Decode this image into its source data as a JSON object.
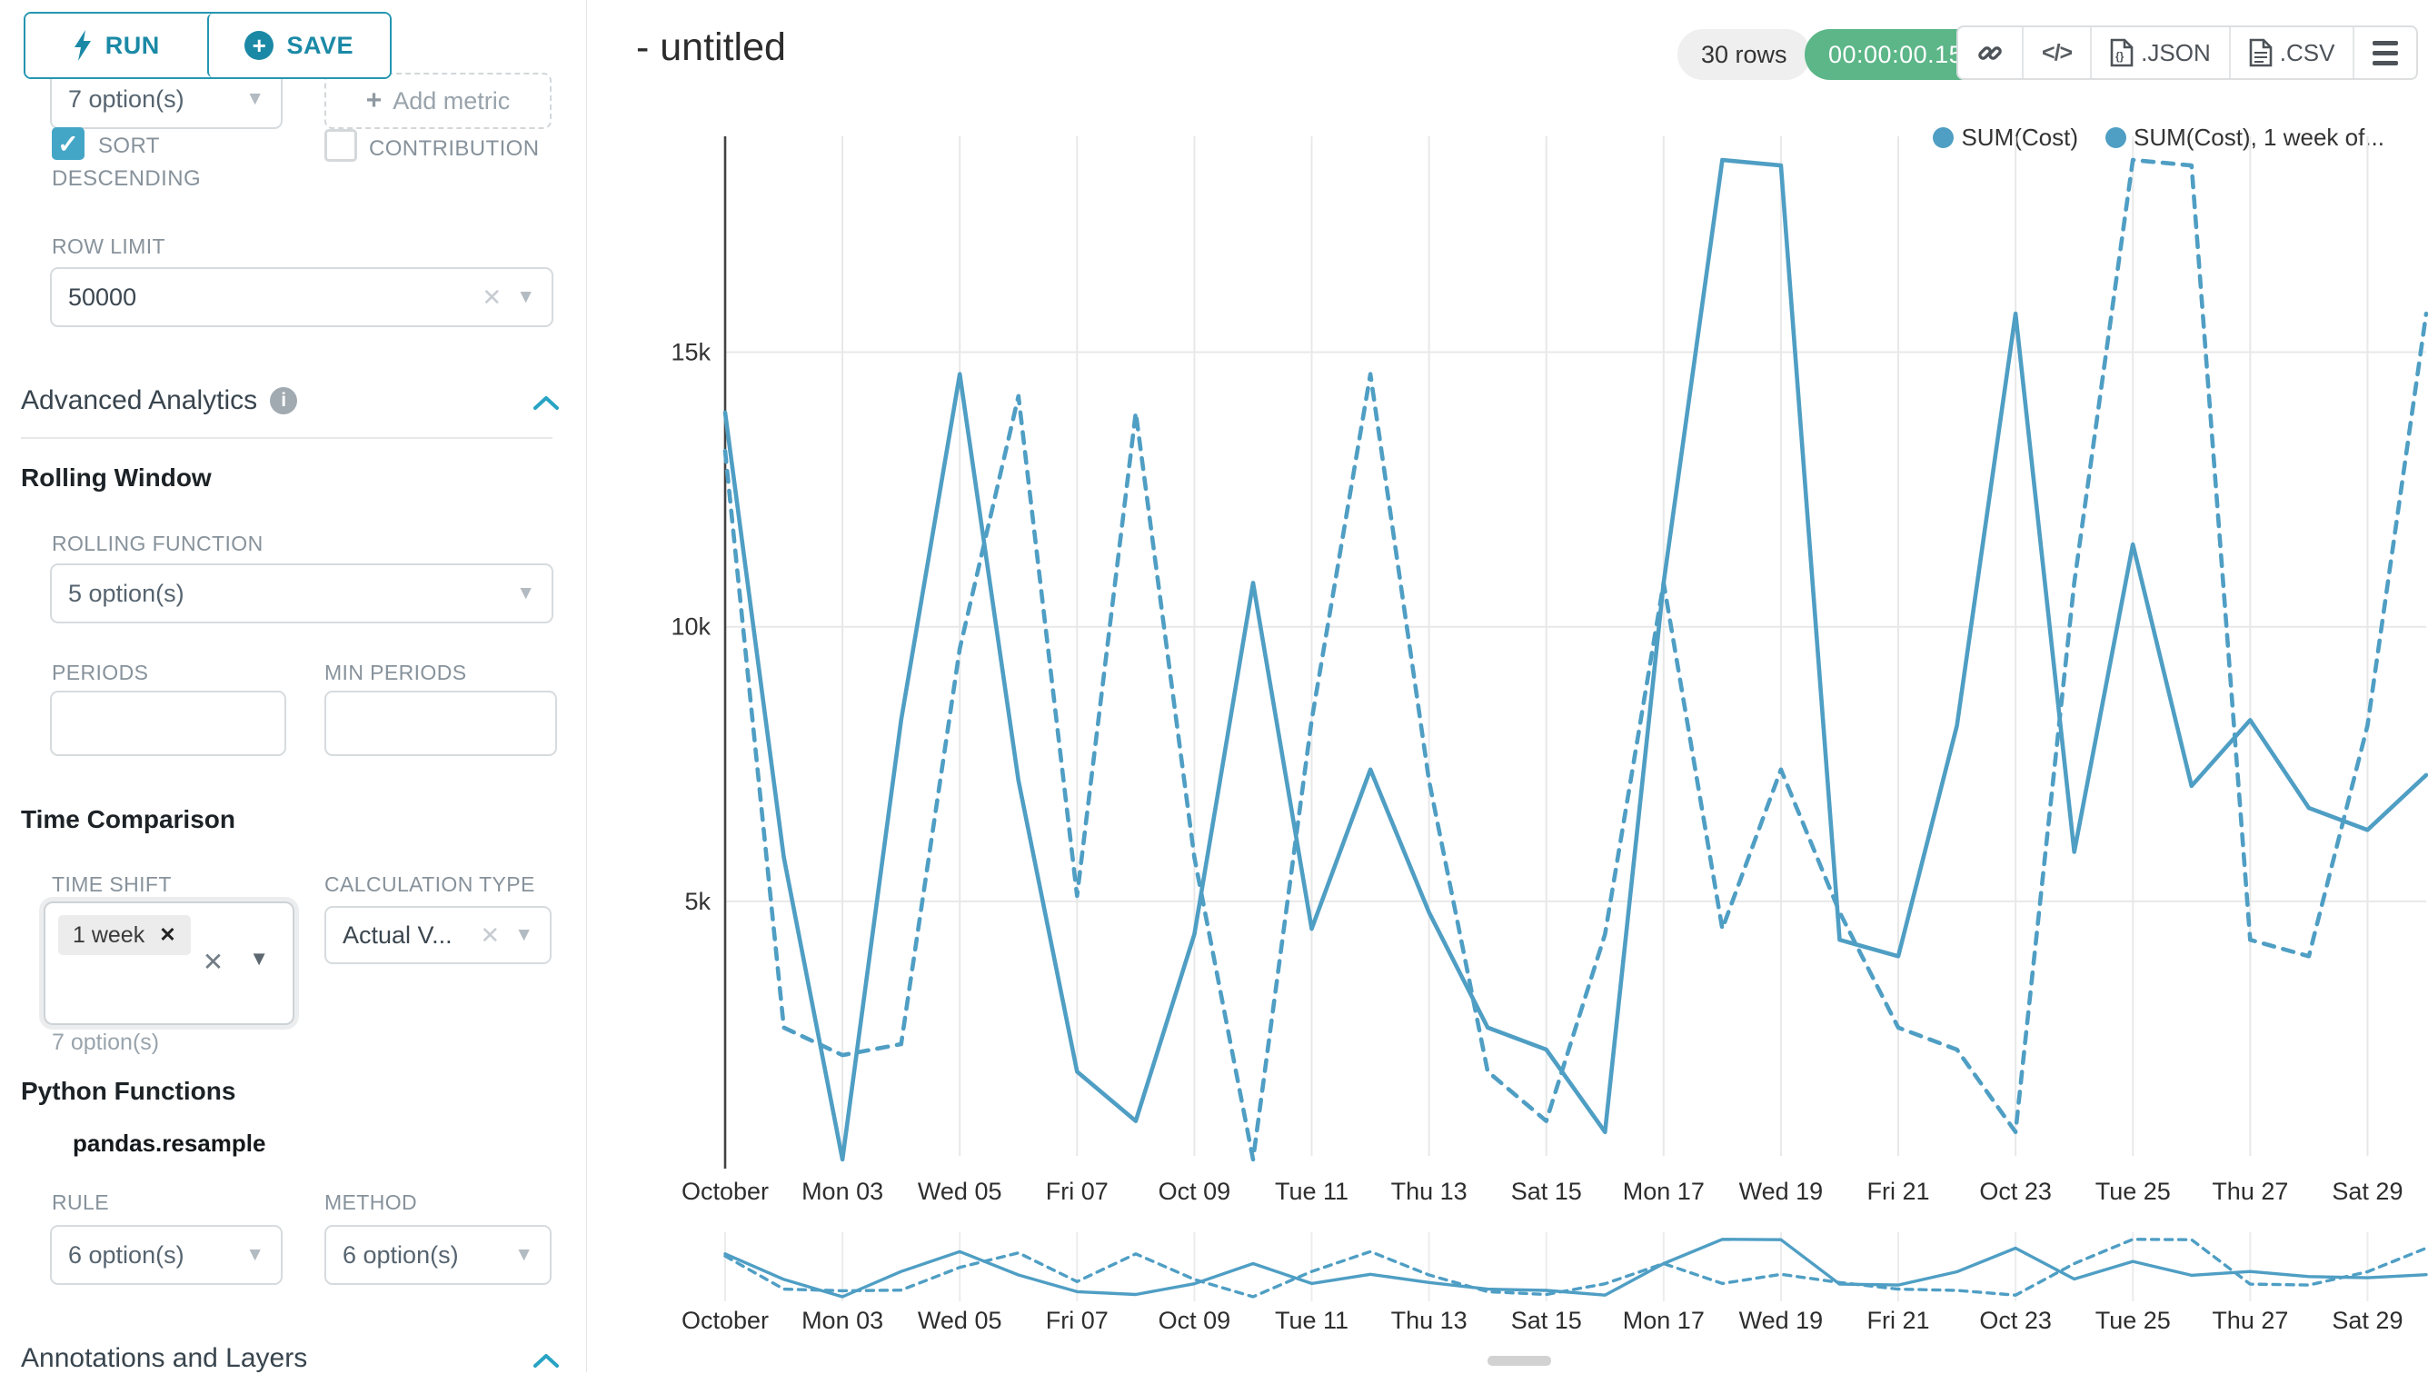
{
  "sidebar": {
    "run_label": "RUN",
    "save_label": "SAVE",
    "metrics_value": "7 option(s)",
    "add_metric_label": "Add metric",
    "sort_descending_line1": "SORT",
    "sort_descending_line2": "DESCENDING",
    "contribution_label": "CONTRIBUTION",
    "row_limit_label": "ROW LIMIT",
    "row_limit_value": "50000",
    "advanced_analytics_title": "Advanced Analytics",
    "rolling_window": {
      "title": "Rolling Window",
      "rolling_function_label": "ROLLING FUNCTION",
      "rolling_function_value": "5 option(s)",
      "periods_label": "PERIODS",
      "min_periods_label": "MIN PERIODS"
    },
    "time_comparison": {
      "title": "Time Comparison",
      "time_shift_label": "TIME SHIFT",
      "time_shift_tag": "1 week",
      "time_shift_helper": "7 option(s)",
      "calculation_type_label": "CALCULATION TYPE",
      "calculation_type_value": "Actual V..."
    },
    "python_functions": {
      "title": "Python Functions",
      "subtitle": "pandas.resample",
      "rule_label": "RULE",
      "rule_value": "6 option(s)",
      "method_label": "METHOD",
      "method_value": "6 option(s)"
    },
    "annotations_title": "Annotations and Layers"
  },
  "header": {
    "title": "- untitled",
    "rows_badge": "30 rows",
    "timer_badge": "00:00:00.15",
    "json_label": ".JSON",
    "csv_label": ".CSV"
  },
  "chart_data": {
    "type": "line",
    "title": "",
    "xlabel": "",
    "ylabel": "",
    "grid": true,
    "legend_position": "top-right",
    "legend_labels": [
      "SUM(Cost)",
      "SUM(Cost), 1 week of..."
    ],
    "line_color": "#4f9ec4",
    "x_tick_labels": [
      "October",
      "Mon 03",
      "Wed 05",
      "Fri 07",
      "Oct 09",
      "Tue 11",
      "Thu 13",
      "Sat 15",
      "Mon 17",
      "Wed 19",
      "Fri 21",
      "Oct 23",
      "Tue 25",
      "Thu 27",
      "Sat 29"
    ],
    "x_tick_days": [
      1,
      3,
      5,
      7,
      9,
      11,
      13,
      15,
      17,
      19,
      21,
      23,
      25,
      27,
      29
    ],
    "x_range_days": [
      1,
      30
    ],
    "ylim": [
      0,
      19000
    ],
    "y_ticks": [
      {
        "label": "5k",
        "value": 5000
      },
      {
        "label": "10k",
        "value": 10000
      },
      {
        "label": "15k",
        "value": 15000
      }
    ],
    "series": [
      {
        "name": "SUM(Cost)",
        "style": "solid",
        "values": [
          13900,
          5800,
          300,
          8300,
          14600,
          7200,
          1900,
          1000,
          4400,
          10800,
          4500,
          7400,
          4800,
          2700,
          2300,
          800,
          10800,
          18500,
          18400,
          4300,
          4000,
          8200,
          15700,
          5900,
          11500,
          7100,
          8300,
          6700,
          6300,
          7300
        ]
      },
      {
        "name": "SUM(Cost), 1 week offset",
        "style": "dashed",
        "values": [
          13200,
          2700,
          2200,
          2400,
          9600,
          14200,
          5100,
          13900,
          5800,
          300,
          8300,
          14600,
          7200,
          1900,
          1000,
          4400,
          10800,
          4500,
          7400,
          4800,
          2700,
          2300,
          800,
          10800,
          18500,
          18400,
          4300,
          4000,
          8200,
          15700
        ]
      }
    ]
  }
}
